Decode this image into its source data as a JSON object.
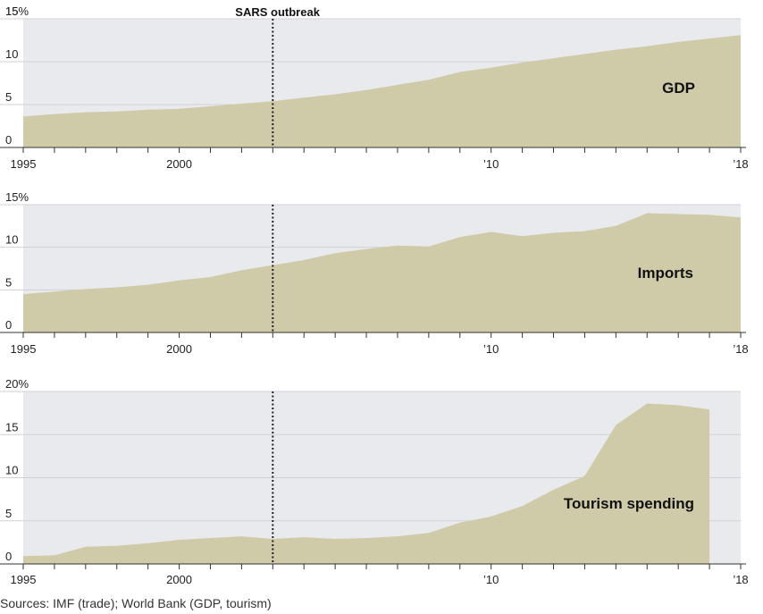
{
  "chart_data": {
    "type": "area",
    "annotation": "SARS outbreak",
    "annotation_year": 2003,
    "source": "Sources: IMF (trade); World Bank (GDP, tourism)",
    "x_ticks": [
      {
        "year": 1995,
        "label": "1995"
      },
      {
        "year": 2000,
        "label": "2000"
      },
      {
        "year": 2010,
        "label": "’10"
      },
      {
        "year": 2018,
        "label": "’18"
      }
    ],
    "colors": {
      "area": "#cfcaa8",
      "plot_bg": "#e9eaed",
      "grid": "#cfd1d6"
    },
    "panels": [
      {
        "label": "GDP",
        "ylim": [
          0,
          15
        ],
        "y_ticks": [
          "0",
          "5",
          "10",
          "15"
        ],
        "top_tick_label": "15%",
        "x": [
          1995,
          1996,
          1997,
          1998,
          1999,
          2000,
          2001,
          2002,
          2003,
          2004,
          2005,
          2006,
          2007,
          2008,
          2009,
          2010,
          2011,
          2012,
          2013,
          2014,
          2015,
          2016,
          2017,
          2018
        ],
        "values": [
          3.6,
          3.9,
          4.1,
          4.2,
          4.4,
          4.5,
          4.8,
          5.1,
          5.4,
          5.8,
          6.2,
          6.7,
          7.3,
          7.9,
          8.8,
          9.3,
          9.9,
          10.4,
          10.9,
          11.4,
          11.8,
          12.3,
          12.7,
          13.1
        ]
      },
      {
        "label": "Imports",
        "ylim": [
          0,
          15
        ],
        "y_ticks": [
          "0",
          "5",
          "10",
          "15%"
        ],
        "x": [
          1995,
          1996,
          1997,
          1998,
          1999,
          2000,
          2001,
          2002,
          2003,
          2004,
          2005,
          2006,
          2007,
          2008,
          2009,
          2010,
          2011,
          2012,
          2013,
          2014,
          2015,
          2016,
          2017,
          2018
        ],
        "values": [
          4.5,
          4.8,
          5.1,
          5.3,
          5.6,
          6.1,
          6.5,
          7.3,
          7.9,
          8.5,
          9.3,
          9.8,
          10.2,
          10.1,
          11.2,
          11.8,
          11.3,
          11.7,
          11.9,
          12.5,
          14.0,
          13.9,
          13.8,
          13.5
        ]
      },
      {
        "label": "Tourism spending",
        "ylim": [
          0,
          20
        ],
        "y_ticks": [
          "0",
          "5",
          "10",
          "15",
          "20%"
        ],
        "x": [
          1995,
          1996,
          1997,
          1998,
          1999,
          2000,
          2001,
          2002,
          2003,
          2004,
          2005,
          2006,
          2007,
          2008,
          2009,
          2010,
          2011,
          2012,
          2013,
          2014,
          2015,
          2016,
          2017
        ],
        "values": [
          0.9,
          1.0,
          2.0,
          2.1,
          2.4,
          2.8,
          3.0,
          3.2,
          2.9,
          3.1,
          2.9,
          3.0,
          3.2,
          3.6,
          4.8,
          5.5,
          6.7,
          8.6,
          10.2,
          16.1,
          18.6,
          18.4,
          17.9
        ]
      }
    ]
  }
}
